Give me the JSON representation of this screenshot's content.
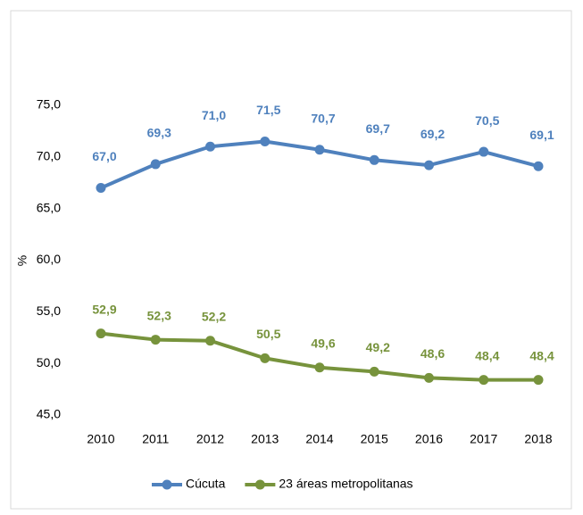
{
  "chart_data": {
    "type": "line",
    "y_label": "%",
    "categories": [
      "2010",
      "2011",
      "2012",
      "2013",
      "2014",
      "2015",
      "2016",
      "2017",
      "2018"
    ],
    "series": [
      {
        "name": "Cúcuta",
        "color": "#4f81bd",
        "values": [
          67.0,
          69.3,
          71.0,
          71.5,
          70.7,
          69.7,
          69.2,
          70.5,
          69.1
        ],
        "value_labels": [
          "67,0",
          "69,3",
          "71,0",
          "71,5",
          "70,7",
          "69,7",
          "69,2",
          "70,5",
          "69,1"
        ]
      },
      {
        "name": "23 áreas metropolitanas",
        "color": "#77933c",
        "values": [
          52.9,
          52.3,
          52.2,
          50.5,
          49.6,
          49.2,
          48.6,
          48.4,
          48.4
        ],
        "value_labels": [
          "52,9",
          "52,3",
          "52,2",
          "50,5",
          "49,6",
          "49,2",
          "48,6",
          "48,4",
          "48,4"
        ]
      }
    ],
    "ylim": [
      45,
      75
    ],
    "yticks": [
      {
        "value": 45,
        "label": "45,0"
      },
      {
        "value": 50,
        "label": "50,0"
      },
      {
        "value": 55,
        "label": "55,0"
      },
      {
        "value": 60,
        "label": "60,0"
      },
      {
        "value": 65,
        "label": "65,0"
      },
      {
        "value": 70,
        "label": "70,0"
      },
      {
        "value": 75,
        "label": "75,0"
      }
    ],
    "grid": false,
    "legend": "bottom"
  }
}
